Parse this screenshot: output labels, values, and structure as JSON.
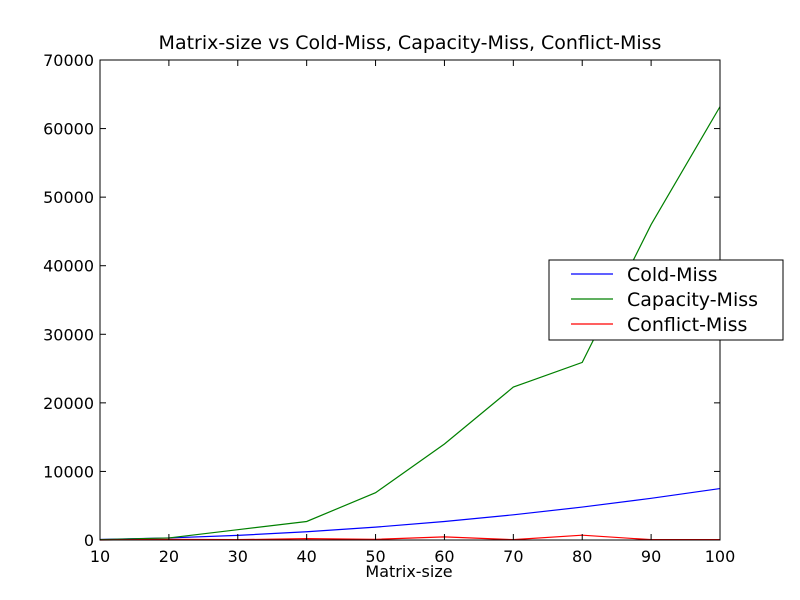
{
  "chart_data": {
    "type": "line",
    "title": "Matrix-size vs Cold-Miss, Capacity-Miss, Conflict-Miss",
    "xlabel": "Matrix-size",
    "ylabel": "",
    "xlim": [
      10,
      100
    ],
    "ylim": [
      0,
      70000
    ],
    "x_ticks": [
      "10",
      "20",
      "30",
      "40",
      "50",
      "60",
      "70",
      "80",
      "90",
      "100"
    ],
    "y_ticks": [
      "0",
      "10000",
      "20000",
      "30000",
      "40000",
      "50000",
      "60000",
      "70000"
    ],
    "grid": false,
    "legend_placement": "center-right",
    "x": [
      10,
      20,
      30,
      40,
      50,
      60,
      70,
      80,
      90,
      100
    ],
    "series": [
      {
        "name": "Cold-Miss",
        "color": "#0000ff",
        "values": [
          75,
          300,
          675,
          1200,
          1875,
          2700,
          3675,
          4800,
          6075,
          7500
        ]
      },
      {
        "name": "Capacity-Miss",
        "color": "#008000",
        "values": [
          50,
          300,
          1500,
          2700,
          6900,
          14000,
          22300,
          25900,
          46000,
          63200
        ]
      },
      {
        "name": "Conflict-Miss",
        "color": "#ff0000",
        "values": [
          0,
          100,
          50,
          200,
          100,
          450,
          50,
          700,
          50,
          50
        ]
      }
    ]
  }
}
